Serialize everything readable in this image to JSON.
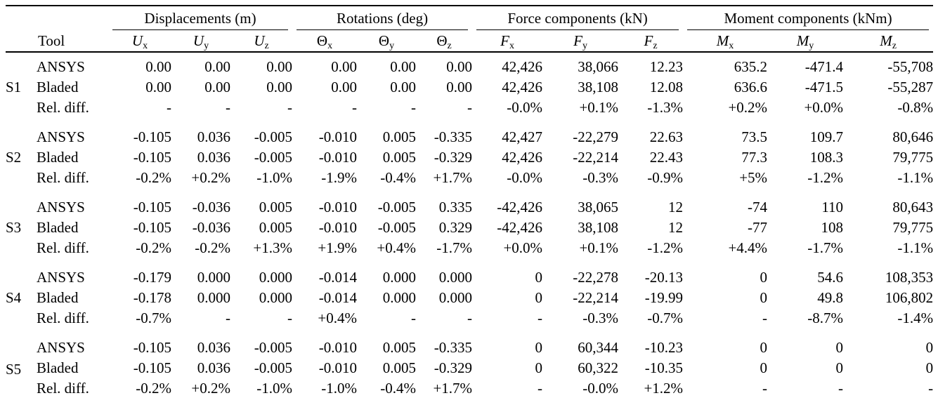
{
  "table": {
    "tool_header": "Tool",
    "groups": [
      {
        "title": "Displacements (m)",
        "columns": [
          {
            "base": "U",
            "sub": "x",
            "italic": true
          },
          {
            "base": "U",
            "sub": "y",
            "italic": true
          },
          {
            "base": "U",
            "sub": "z",
            "italic": true
          }
        ]
      },
      {
        "title": "Rotations (deg)",
        "columns": [
          {
            "base": "Θ",
            "sub": "x",
            "italic": false
          },
          {
            "base": "Θ",
            "sub": "y",
            "italic": false
          },
          {
            "base": "Θ",
            "sub": "z",
            "italic": false
          }
        ]
      },
      {
        "title": "Force components (kN)",
        "columns": [
          {
            "base": "F",
            "sub": "x",
            "italic": true
          },
          {
            "base": "F",
            "sub": "y",
            "italic": true
          },
          {
            "base": "F",
            "sub": "z",
            "italic": true
          }
        ]
      },
      {
        "title": "Moment components (kNm)",
        "columns": [
          {
            "base": "M",
            "sub": "x",
            "italic": true
          },
          {
            "base": "M",
            "sub": "y",
            "italic": true
          },
          {
            "base": "M",
            "sub": "z",
            "italic": true
          }
        ]
      }
    ],
    "sections": [
      {
        "id": "S1",
        "rows": [
          {
            "tool": "ANSYS",
            "values": [
              "0.00",
              "0.00",
              "0.00",
              "0.00",
              "0.00",
              "0.00",
              "42,426",
              "38,066",
              "12.23",
              "635.2",
              "-471.4",
              "-55,708"
            ]
          },
          {
            "tool": "Bladed",
            "values": [
              "0.00",
              "0.00",
              "0.00",
              "0.00",
              "0.00",
              "0.00",
              "42,426",
              "38,108",
              "12.08",
              "636.6",
              "-471.5",
              "-55,287"
            ]
          },
          {
            "tool": "Rel. diff.",
            "values": [
              "-",
              "-",
              "-",
              "-",
              "-",
              "-",
              "-0.0%",
              "+0.1%",
              "-1.3%",
              "+0.2%",
              "+0.0%",
              "-0.8%"
            ]
          }
        ]
      },
      {
        "id": "S2",
        "rows": [
          {
            "tool": "ANSYS",
            "values": [
              "-0.105",
              "0.036",
              "-0.005",
              "-0.010",
              "0.005",
              "-0.335",
              "42,427",
              "-22,279",
              "22.63",
              "73.5",
              "109.7",
              "80,646"
            ]
          },
          {
            "tool": "Bladed",
            "values": [
              "-0.105",
              "0.036",
              "-0.005",
              "-0.010",
              "0.005",
              "-0.329",
              "42,426",
              "-22,214",
              "22.43",
              "77.3",
              "108.3",
              "79,775"
            ]
          },
          {
            "tool": "Rel. diff.",
            "values": [
              "-0.2%",
              "+0.2%",
              "-1.0%",
              "-1.9%",
              "-0.4%",
              "+1.7%",
              "-0.0%",
              "-0.3%",
              "-0.9%",
              "+5%",
              "-1.2%",
              "-1.1%"
            ]
          }
        ]
      },
      {
        "id": "S3",
        "rows": [
          {
            "tool": "ANSYS",
            "values": [
              "-0.105",
              "-0.036",
              "0.005",
              "-0.010",
              "-0.005",
              "0.335",
              "-42,426",
              "38,065",
              "12",
              "-74",
              "110",
              "80,643"
            ]
          },
          {
            "tool": "Bladed",
            "values": [
              "-0.105",
              "-0.036",
              "0.005",
              "-0.010",
              "-0.005",
              "0.329",
              "-42,426",
              "38,108",
              "12",
              "-77",
              "108",
              "79,775"
            ]
          },
          {
            "tool": "Rel. diff.",
            "values": [
              "-0.2%",
              "-0.2%",
              "+1.3%",
              "+1.9%",
              "+0.4%",
              "-1.7%",
              "+0.0%",
              "+0.1%",
              "-1.2%",
              "+4.4%",
              "-1.7%",
              "-1.1%"
            ]
          }
        ]
      },
      {
        "id": "S4",
        "rows": [
          {
            "tool": "ANSYS",
            "values": [
              "-0.179",
              "0.000",
              "0.000",
              "-0.014",
              "0.000",
              "0.000",
              "0",
              "-22,278",
              "-20.13",
              "0",
              "54.6",
              "108,353"
            ]
          },
          {
            "tool": "Bladed",
            "values": [
              "-0.178",
              "0.000",
              "0.000",
              "-0.014",
              "0.000",
              "0.000",
              "0",
              "-22,214",
              "-19.99",
              "0",
              "49.8",
              "106,802"
            ]
          },
          {
            "tool": "Rel. diff.",
            "values": [
              "-0.7%",
              "-",
              "-",
              "+0.4%",
              "-",
              "-",
              "-",
              "-0.3%",
              "-0.7%",
              "-",
              "-8.7%",
              "-1.4%"
            ]
          }
        ]
      },
      {
        "id": "S5",
        "rows": [
          {
            "tool": "ANSYS",
            "values": [
              "-0.105",
              "0.036",
              "-0.005",
              "-0.010",
              "0.005",
              "-0.335",
              "0",
              "60,344",
              "-10.23",
              "0",
              "0",
              "0"
            ]
          },
          {
            "tool": "Bladed",
            "values": [
              "-0.105",
              "0.036",
              "-0.005",
              "-0.010",
              "0.005",
              "-0.329",
              "0",
              "60,322",
              "-10.35",
              "0",
              "0",
              "0"
            ]
          },
          {
            "tool": "Rel. diff.",
            "values": [
              "-0.2%",
              "+0.2%",
              "-1.0%",
              "-1.0%",
              "-0.4%",
              "+1.7%",
              "-",
              "-0.0%",
              "+1.2%",
              "-",
              "-",
              "-"
            ]
          }
        ]
      }
    ]
  },
  "colors": {
    "text": "#000000",
    "rule": "#000000",
    "background": "#ffffff"
  }
}
